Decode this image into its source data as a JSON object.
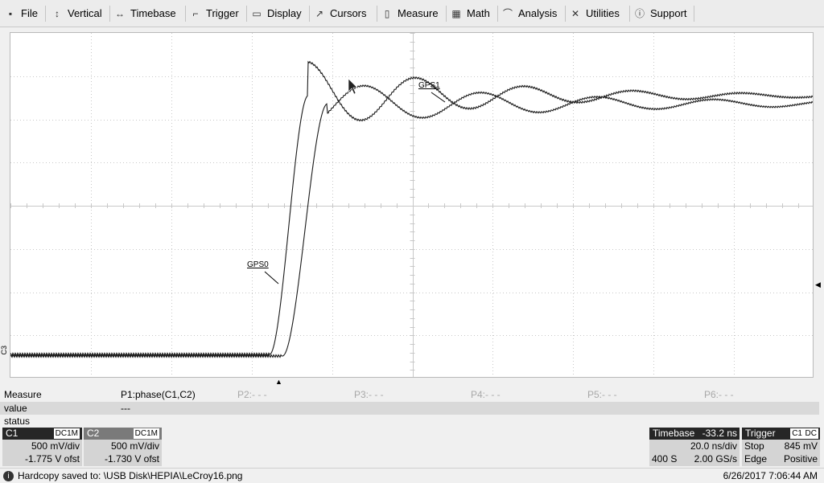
{
  "menu": [
    {
      "label": "File",
      "icon": "file-icon"
    },
    {
      "label": "Vertical",
      "icon": "vertical-arrows-icon"
    },
    {
      "label": "Timebase",
      "icon": "horizontal-arrows-icon"
    },
    {
      "label": "Trigger",
      "icon": "trigger-icon"
    },
    {
      "label": "Display",
      "icon": "display-icon"
    },
    {
      "label": "Cursors",
      "icon": "cursor-icon"
    },
    {
      "label": "Measure",
      "icon": "measure-icon"
    },
    {
      "label": "Math",
      "icon": "calculator-icon"
    },
    {
      "label": "Analysis",
      "icon": "analysis-icon"
    },
    {
      "label": "Utilities",
      "icon": "utilities-icon"
    },
    {
      "label": "Support",
      "icon": "info-icon"
    }
  ],
  "plot": {
    "trace1_label": "GPS0",
    "trace2_label": "GPS1",
    "side_marker": "C3",
    "trace_color": "#1a1a1a",
    "grid_color": "#c8c8c8"
  },
  "measure": {
    "row_label": "Measure",
    "value_label": "value",
    "status_label": "status",
    "p1": "P1:phase(C1,C2)",
    "p1_value": "---",
    "p2": "P2:- - -",
    "p3": "P3:- - -",
    "p4": "P4:- - -",
    "p5": "P5:- - -",
    "p6": "P6:- - -"
  },
  "channels": [
    {
      "name": "C1",
      "coupling": "DC1M",
      "vdiv": "500 mV/div",
      "offset": "-1.775 V ofst"
    },
    {
      "name": "C2",
      "coupling": "DC1M",
      "vdiv": "500 mV/div",
      "offset": "-1.730 V ofst"
    }
  ],
  "timebase": {
    "label": "Timebase",
    "delay": "-33.2 ns",
    "tdiv": "20.0 ns/div",
    "samples": "400 S",
    "rate": "2.00 GS/s"
  },
  "trigger": {
    "label": "Trigger",
    "source": "C1",
    "coupling": "DC",
    "mode": "Stop",
    "level": "845 mV",
    "type": "Edge",
    "slope": "Positive"
  },
  "status": {
    "message": "Hardcopy saved to: \\USB Disk\\HEPIA\\LeCroy16.png",
    "datetime": "6/26/2017 7:06:44 AM"
  }
}
